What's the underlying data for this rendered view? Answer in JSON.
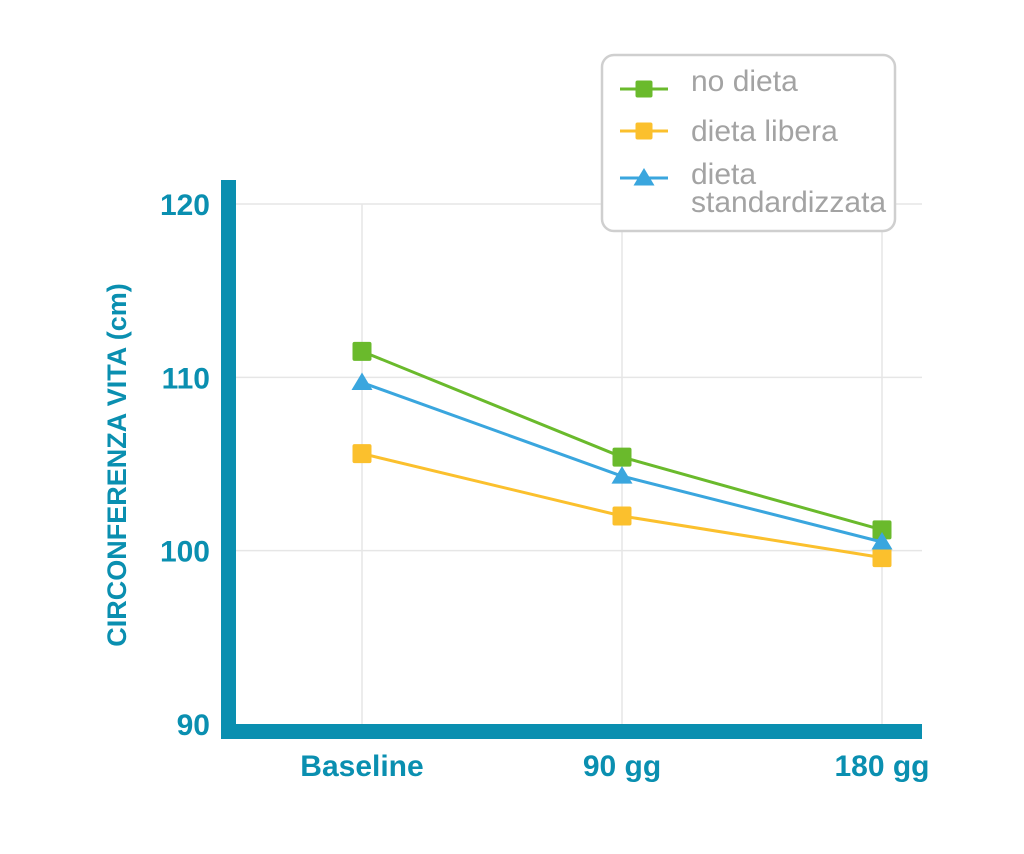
{
  "chart_data": {
    "type": "line",
    "categories": [
      "Baseline",
      "90 gg",
      "180 gg"
    ],
    "series": [
      {
        "name": "no dieta",
        "values": [
          111.5,
          105.4,
          101.2
        ],
        "color": "#6aba2c",
        "marker": "square"
      },
      {
        "name": "dieta libera",
        "values": [
          105.6,
          102.0,
          99.6
        ],
        "color": "#fbc02d",
        "marker": "square"
      },
      {
        "name": "dieta standardizzata",
        "values": [
          109.7,
          104.3,
          100.5
        ],
        "color": "#3aa6de",
        "marker": "triangle"
      }
    ],
    "ylabel": "CIRCONFERENZA VITA (cm)",
    "xlabel": "",
    "title": "",
    "ylim": [
      90,
      120
    ],
    "yticks": [
      90,
      100,
      110,
      120
    ],
    "grid": true,
    "legend_position": "top-right",
    "axis_color": "#0a8fb0",
    "grid_color": "#e6e6e6",
    "legend_text_color": "#a3a3a3",
    "legend_border_color": "#cfcfcf"
  }
}
